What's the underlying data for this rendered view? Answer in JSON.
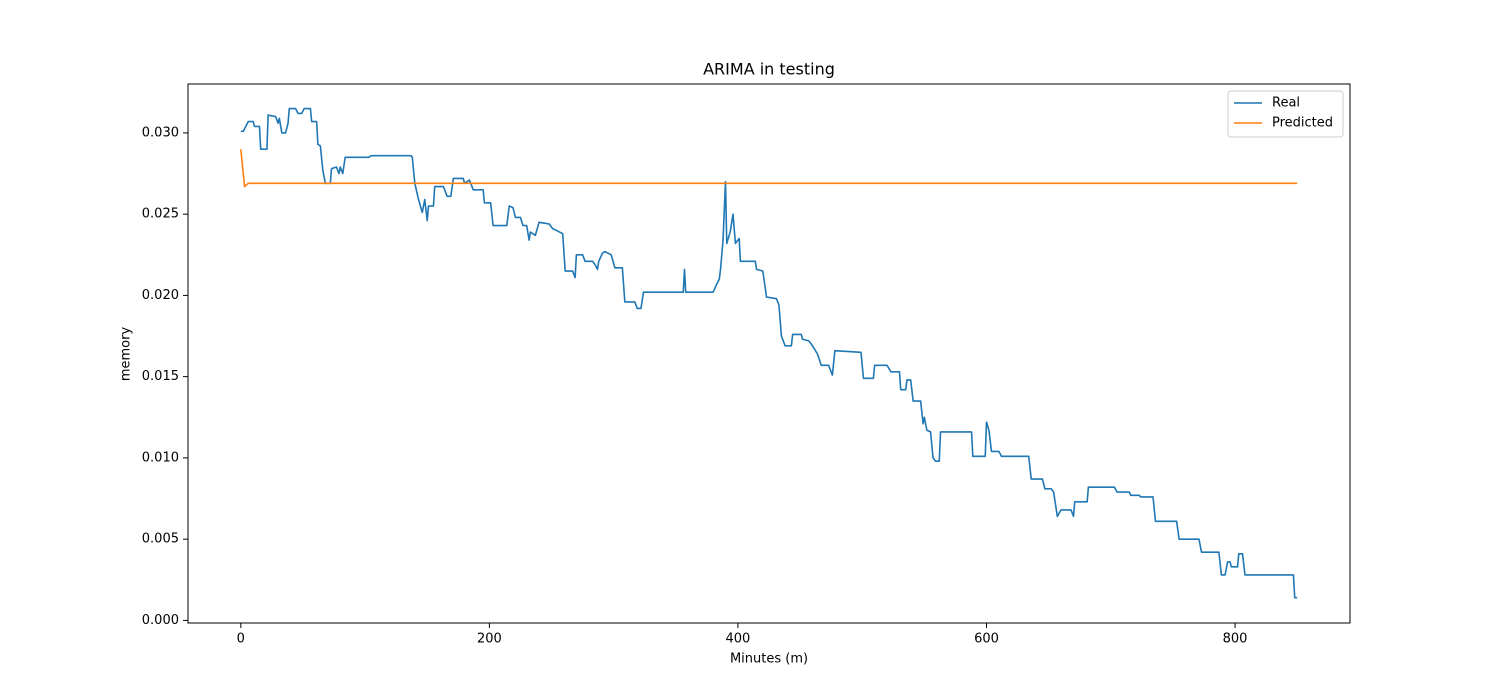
{
  "chart_data": {
    "type": "line",
    "title": "ARIMA in testing",
    "x_label": "Minutes (m)",
    "y_label": "memory",
    "xlim": [
      -42.5,
      892.5
    ],
    "ylim": [
      -0.00016,
      0.03301
    ],
    "xticks": [
      0,
      200,
      400,
      600,
      800
    ],
    "yticks": [
      {
        "value": 0,
        "label": "0.000"
      },
      0.005,
      {
        "value": 0.01,
        "label": "0.010"
      },
      0.015,
      {
        "value": 0.02,
        "label": "0.020"
      },
      0.025,
      {
        "value": 0.03,
        "label": "0.030"
      }
    ],
    "grid": false,
    "legend": "upper right",
    "series": [
      {
        "name": "Real",
        "color": "#1f77b4",
        "x": [
          0,
          2,
          6,
          10,
          11,
          15,
          16,
          21,
          22,
          28,
          30,
          31,
          33,
          36,
          38,
          39,
          44,
          46,
          49,
          51,
          56,
          57,
          61,
          62,
          64,
          66,
          68,
          72,
          73,
          77,
          79,
          80,
          82,
          84,
          90,
          92,
          103,
          105,
          137,
          138,
          140,
          143,
          146,
          148,
          150,
          151,
          155,
          156,
          163,
          166,
          169,
          171,
          179,
          180,
          184,
          187,
          195,
          196,
          201,
          203,
          214,
          216,
          219,
          221,
          225,
          227,
          230,
          232,
          233,
          237,
          240,
          248,
          251,
          254,
          259,
          261,
          267,
          269,
          270,
          275,
          277,
          283,
          285,
          287,
          288,
          291,
          293,
          298,
          301,
          307,
          309,
          317,
          319,
          322,
          324,
          356,
          357,
          358,
          380,
          383,
          385,
          386,
          388,
          390,
          391,
          393,
          394,
          396,
          398,
          401,
          402,
          414,
          415,
          420,
          423,
          431,
          433,
          435,
          438,
          443,
          444,
          451,
          452,
          457,
          460,
          464,
          467,
          473,
          476,
          478,
          499,
          501,
          509,
          510,
          520,
          523,
          530,
          531,
          535,
          536,
          539,
          541,
          547,
          549,
          550,
          552,
          555,
          557,
          559,
          562,
          563,
          588,
          589,
          599,
          600,
          602,
          604,
          610,
          612,
          634,
          636,
          645,
          647,
          652,
          654,
          657,
          660,
          668,
          670,
          671,
          681,
          682,
          703,
          705,
          715,
          716,
          723,
          724,
          734,
          736,
          753,
          755,
          771,
          773,
          787,
          789,
          792,
          794,
          796,
          797,
          802,
          803,
          806,
          808,
          839,
          847,
          848,
          850
        ],
        "values": [
          0.0301,
          0.0301,
          0.0307,
          0.0307,
          0.0304,
          0.0304,
          0.029,
          0.029,
          0.0311,
          0.031,
          0.0306,
          0.0309,
          0.03,
          0.03,
          0.0306,
          0.0315,
          0.0315,
          0.0312,
          0.0312,
          0.0315,
          0.0315,
          0.0307,
          0.0307,
          0.0293,
          0.0292,
          0.0277,
          0.0269,
          0.0269,
          0.0278,
          0.0279,
          0.0275,
          0.0279,
          0.0275,
          0.0285,
          0.0285,
          0.0285,
          0.0285,
          0.0286,
          0.0286,
          0.0285,
          0.0269,
          0.0259,
          0.0251,
          0.0259,
          0.0246,
          0.0255,
          0.0255,
          0.0267,
          0.0267,
          0.0261,
          0.0261,
          0.0272,
          0.0272,
          0.0269,
          0.0271,
          0.0265,
          0.0265,
          0.0257,
          0.0257,
          0.0243,
          0.0243,
          0.0255,
          0.0254,
          0.0248,
          0.0248,
          0.0243,
          0.0243,
          0.0234,
          0.0239,
          0.0237,
          0.0245,
          0.0244,
          0.0241,
          0.024,
          0.0238,
          0.0215,
          0.0215,
          0.0211,
          0.0225,
          0.0225,
          0.0221,
          0.0221,
          0.0219,
          0.0216,
          0.0221,
          0.0226,
          0.0227,
          0.0225,
          0.0217,
          0.0217,
          0.0196,
          0.0196,
          0.0192,
          0.0192,
          0.0202,
          0.0202,
          0.0216,
          0.0202,
          0.0202,
          0.0207,
          0.021,
          0.0216,
          0.0234,
          0.027,
          0.0232,
          0.0237,
          0.024,
          0.025,
          0.0232,
          0.0235,
          0.0221,
          0.0221,
          0.0216,
          0.0215,
          0.0199,
          0.0198,
          0.0194,
          0.0175,
          0.0169,
          0.0169,
          0.0176,
          0.0176,
          0.0173,
          0.0172,
          0.0169,
          0.0164,
          0.0157,
          0.0157,
          0.0151,
          0.0166,
          0.0165,
          0.0149,
          0.0149,
          0.0157,
          0.0157,
          0.0153,
          0.0153,
          0.0142,
          0.0142,
          0.0148,
          0.0148,
          0.0135,
          0.0135,
          0.0121,
          0.0125,
          0.0117,
          0.0116,
          0.01,
          0.0098,
          0.0098,
          0.0116,
          0.0116,
          0.0101,
          0.0101,
          0.0122,
          0.0117,
          0.0104,
          0.0104,
          0.0101,
          0.0101,
          0.0087,
          0.0087,
          0.0081,
          0.0081,
          0.0079,
          0.0064,
          0.0068,
          0.0068,
          0.0064,
          0.0073,
          0.0073,
          0.0082,
          0.0082,
          0.0079,
          0.0079,
          0.0077,
          0.0077,
          0.0076,
          0.0076,
          0.0061,
          0.0061,
          0.005,
          0.005,
          0.0042,
          0.0042,
          0.0028,
          0.0028,
          0.0036,
          0.0036,
          0.0033,
          0.0033,
          0.0041,
          0.0041,
          0.0028,
          0.0028,
          0.0028,
          0.0014,
          0.0014
        ]
      },
      {
        "name": "Predicted",
        "color": "#ff7f0e",
        "x": [
          0,
          3,
          6,
          850
        ],
        "values": [
          0.029,
          0.0267,
          0.0269,
          0.0269
        ]
      }
    ]
  }
}
